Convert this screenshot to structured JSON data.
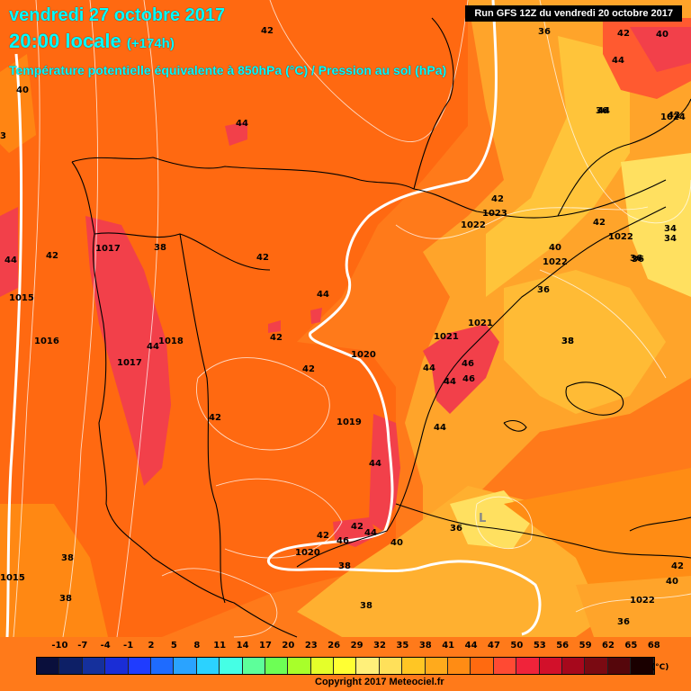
{
  "header": {
    "date_line": "vendredi 27 octobre 2017",
    "time_line": "20:00 locale",
    "lead_time": "(+174h)",
    "field_title": "Température potentielle équivalente à 850hPa (°C) / Pression au sol (hPa)",
    "run_info": "Run GFS 12Z du vendredi 20 octobre 2017"
  },
  "legend": {
    "ticks": [
      "-10",
      "-7",
      "-4",
      "-1",
      "2",
      "5",
      "8",
      "11",
      "14",
      "17",
      "20",
      "23",
      "26",
      "29",
      "32",
      "35",
      "38",
      "41",
      "44",
      "47",
      "50",
      "53",
      "56",
      "59",
      "62",
      "65",
      "68"
    ],
    "colors": [
      "#0a0f3c",
      "#0d1f66",
      "#15309c",
      "#1a2dd6",
      "#1f3cff",
      "#1e6bff",
      "#2aa3ff",
      "#2bd2ff",
      "#45ffe5",
      "#5dff9a",
      "#6dff55",
      "#a8ff2a",
      "#e4ff2a",
      "#ffff33",
      "#fff07a",
      "#ffe05a",
      "#ffc624",
      "#ffaa1c",
      "#ff8c14",
      "#ff6a10",
      "#ff4a33",
      "#f0233a",
      "#d2102a",
      "#a6081c",
      "#7a0a12",
      "#55060b",
      "#1a0000"
    ],
    "unit": "(°C)"
  },
  "copyright": "Copyright 2017 Meteociel.fr",
  "labels": {
    "theta": [
      "42",
      "40",
      "3",
      "44",
      "42",
      "44",
      "44",
      "44",
      "42",
      "44",
      "42",
      "44",
      "42",
      "46",
      "44",
      "46",
      "44",
      "44",
      "42",
      "42",
      "44",
      "46",
      "40",
      "36",
      "38",
      "38",
      "36",
      "42",
      "40",
      "36",
      "42",
      "42",
      "44",
      "40",
      "38",
      "36",
      "42",
      "36",
      "36",
      "38",
      "36",
      "34",
      "34",
      "40",
      "36",
      "42",
      "38",
      "38",
      "38",
      "42"
    ],
    "pressure": [
      "1017",
      "1015",
      "1016",
      "1017",
      "1018",
      "1020",
      "1019",
      "1021",
      "1021",
      "1022",
      "1023",
      "1022",
      "1022",
      "1024",
      "1020",
      "1022",
      "1015",
      "1020",
      "1021"
    ]
  },
  "colors": {
    "main_orange": "#ff7a1a",
    "warm_red": "#f2404a",
    "yellow_orange": "#ffc43a",
    "yellow": "#ffe060",
    "deep_orange": "#ff6610"
  }
}
